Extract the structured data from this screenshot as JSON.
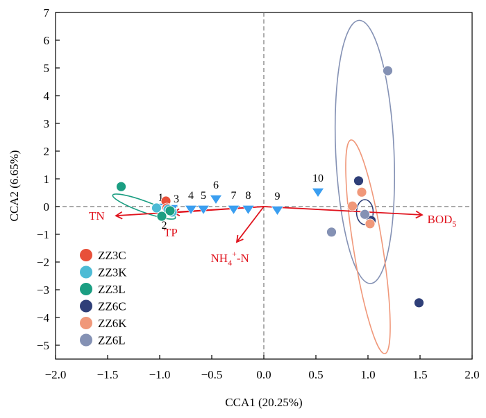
{
  "chart_data": {
    "type": "scatter",
    "xlabel": "CCA1 (20.25%)",
    "ylabel": "CCA2 (6.65%)",
    "xlim": [
      -2.0,
      2.0
    ],
    "ylim": [
      -5.5,
      7
    ],
    "x_ticks": [
      "−2.0",
      "−1.5",
      "−1.0",
      "−0.5",
      "0.0",
      "0.5",
      "1.0",
      "1.5",
      "2.0"
    ],
    "y_ticks": [
      "7",
      "6",
      "5",
      "4",
      "3",
      "2",
      "1",
      "0",
      "−1",
      "−2",
      "−3",
      "−4",
      "−5"
    ],
    "legend_position": "bottom-left",
    "colors": {
      "ZZ3C": "#e8503a",
      "ZZ3K": "#4dbbd5",
      "ZZ3L": "#1b9e82",
      "ZZ6C": "#2f3f78",
      "ZZ6K": "#f0987a",
      "ZZ6L": "#8491b4",
      "env": "#e0141e",
      "sites": "#3a9ef0"
    },
    "series": [
      {
        "name": "ZZ3C",
        "points": [
          [
            -0.94,
            0.2
          ],
          [
            -0.93,
            -0.05
          ],
          [
            -0.9,
            -0.15
          ]
        ]
      },
      {
        "name": "ZZ3K",
        "points": [
          [
            -1.03,
            -0.05
          ],
          [
            -0.92,
            -0.1
          ],
          [
            -0.88,
            -0.2
          ]
        ]
      },
      {
        "name": "ZZ3L",
        "points": [
          [
            -1.37,
            0.72
          ],
          [
            -0.98,
            -0.35
          ],
          [
            -0.9,
            -0.15
          ]
        ]
      },
      {
        "name": "ZZ6C",
        "points": [
          [
            0.91,
            0.93
          ],
          [
            1.03,
            -0.5
          ],
          [
            1.49,
            -3.47
          ]
        ]
      },
      {
        "name": "ZZ6K",
        "points": [
          [
            0.94,
            0.52
          ],
          [
            0.85,
            0.02
          ],
          [
            1.02,
            -0.62
          ]
        ]
      },
      {
        "name": "ZZ6L",
        "points": [
          [
            1.19,
            4.9
          ],
          [
            0.97,
            -0.28
          ],
          [
            0.65,
            -0.92
          ]
        ]
      }
    ],
    "ellipses": [
      {
        "group": "ZZ3L",
        "center": [
          -1.15,
          0.0
        ],
        "rx": 0.32,
        "ry": 0.2,
        "angle_deg": 20
      },
      {
        "group": "ZZ6L",
        "center": [
          0.97,
          1.97
        ],
        "rx": 0.28,
        "ry": 4.75,
        "angle_deg": -2.5
      },
      {
        "group": "ZZ6K",
        "center": [
          1.0,
          -1.45
        ],
        "rx": 0.14,
        "ry": 3.9,
        "angle_deg": -9
      },
      {
        "group": "ZZ6C",
        "center": [
          0.97,
          -0.2
        ],
        "rx": 0.08,
        "ry": 0.45,
        "angle_deg": 0
      }
    ],
    "sites": [
      {
        "label": "1",
        "x": -0.95,
        "y": -0.05
      },
      {
        "label": "2",
        "x": -0.93,
        "y": -0.12
      },
      {
        "label": "3",
        "x": -0.88,
        "y": -0.1
      },
      {
        "label": "4",
        "x": -0.7,
        "y": -0.12
      },
      {
        "label": "5",
        "x": -0.58,
        "y": -0.12
      },
      {
        "label": "6",
        "x": -0.46,
        "y": 0.25
      },
      {
        "label": "7",
        "x": -0.29,
        "y": -0.12
      },
      {
        "label": "8",
        "x": -0.15,
        "y": -0.12
      },
      {
        "label": "9",
        "x": 0.13,
        "y": -0.15
      },
      {
        "label": "10",
        "x": 0.52,
        "y": 0.5
      }
    ],
    "env_vectors": [
      {
        "label": "TN",
        "x": -1.42,
        "y": -0.33
      },
      {
        "label": "TP",
        "x": -0.87,
        "y": -0.22
      },
      {
        "label": "NH4+-N",
        "x": -0.26,
        "y": -1.28
      },
      {
        "label": "BOD5",
        "x": 1.52,
        "y": -0.3
      }
    ],
    "env_label_text": {
      "TN": "TN",
      "TP": "TP",
      "NH4+-N": {
        "base": "NH",
        "sub": "4",
        "sup": "+",
        "rest": "-N"
      },
      "BOD5": {
        "base": "BOD",
        "sub": "5"
      }
    }
  }
}
